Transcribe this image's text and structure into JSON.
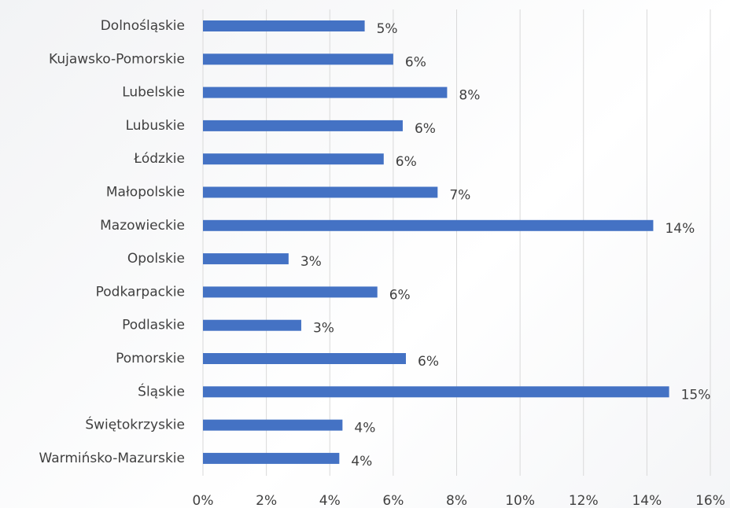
{
  "chart_data": {
    "type": "hbar",
    "categories": [
      "Dolnośląskie",
      "Kujawsko-Pomorskie",
      "Lubelskie",
      "Lubuskie",
      "Łódzkie",
      "Małopolskie",
      "Mazowieckie",
      "Opolskie",
      "Podkarpackie",
      "Podlaskie",
      "Pomorskie",
      "Śląskie",
      "Świętokrzyskie",
      "Warmińsko-Mazurskie"
    ],
    "values": [
      5.1,
      6.0,
      7.7,
      6.3,
      5.7,
      7.4,
      14.2,
      2.7,
      5.5,
      3.1,
      6.4,
      14.7,
      4.4,
      4.3
    ],
    "value_labels": [
      "5%",
      "6%",
      "8%",
      "6%",
      "6%",
      "7%",
      "14%",
      "3%",
      "6%",
      "3%",
      "6%",
      "15%",
      "4%",
      "4%"
    ],
    "color": "#4472c4",
    "xlim": [
      0,
      16
    ],
    "xticks": [
      {
        "value": 0,
        "label": "0%"
      },
      {
        "value": 2,
        "label": "2%"
      },
      {
        "value": 4,
        "label": "4%"
      },
      {
        "value": 6,
        "label": "6%"
      },
      {
        "value": 8,
        "label": "8%"
      },
      {
        "value": 10,
        "label": "10%"
      },
      {
        "value": 12,
        "label": "12%"
      },
      {
        "value": 14,
        "label": "14%"
      },
      {
        "value": 16,
        "label": "16%"
      }
    ],
    "grid": true
  }
}
